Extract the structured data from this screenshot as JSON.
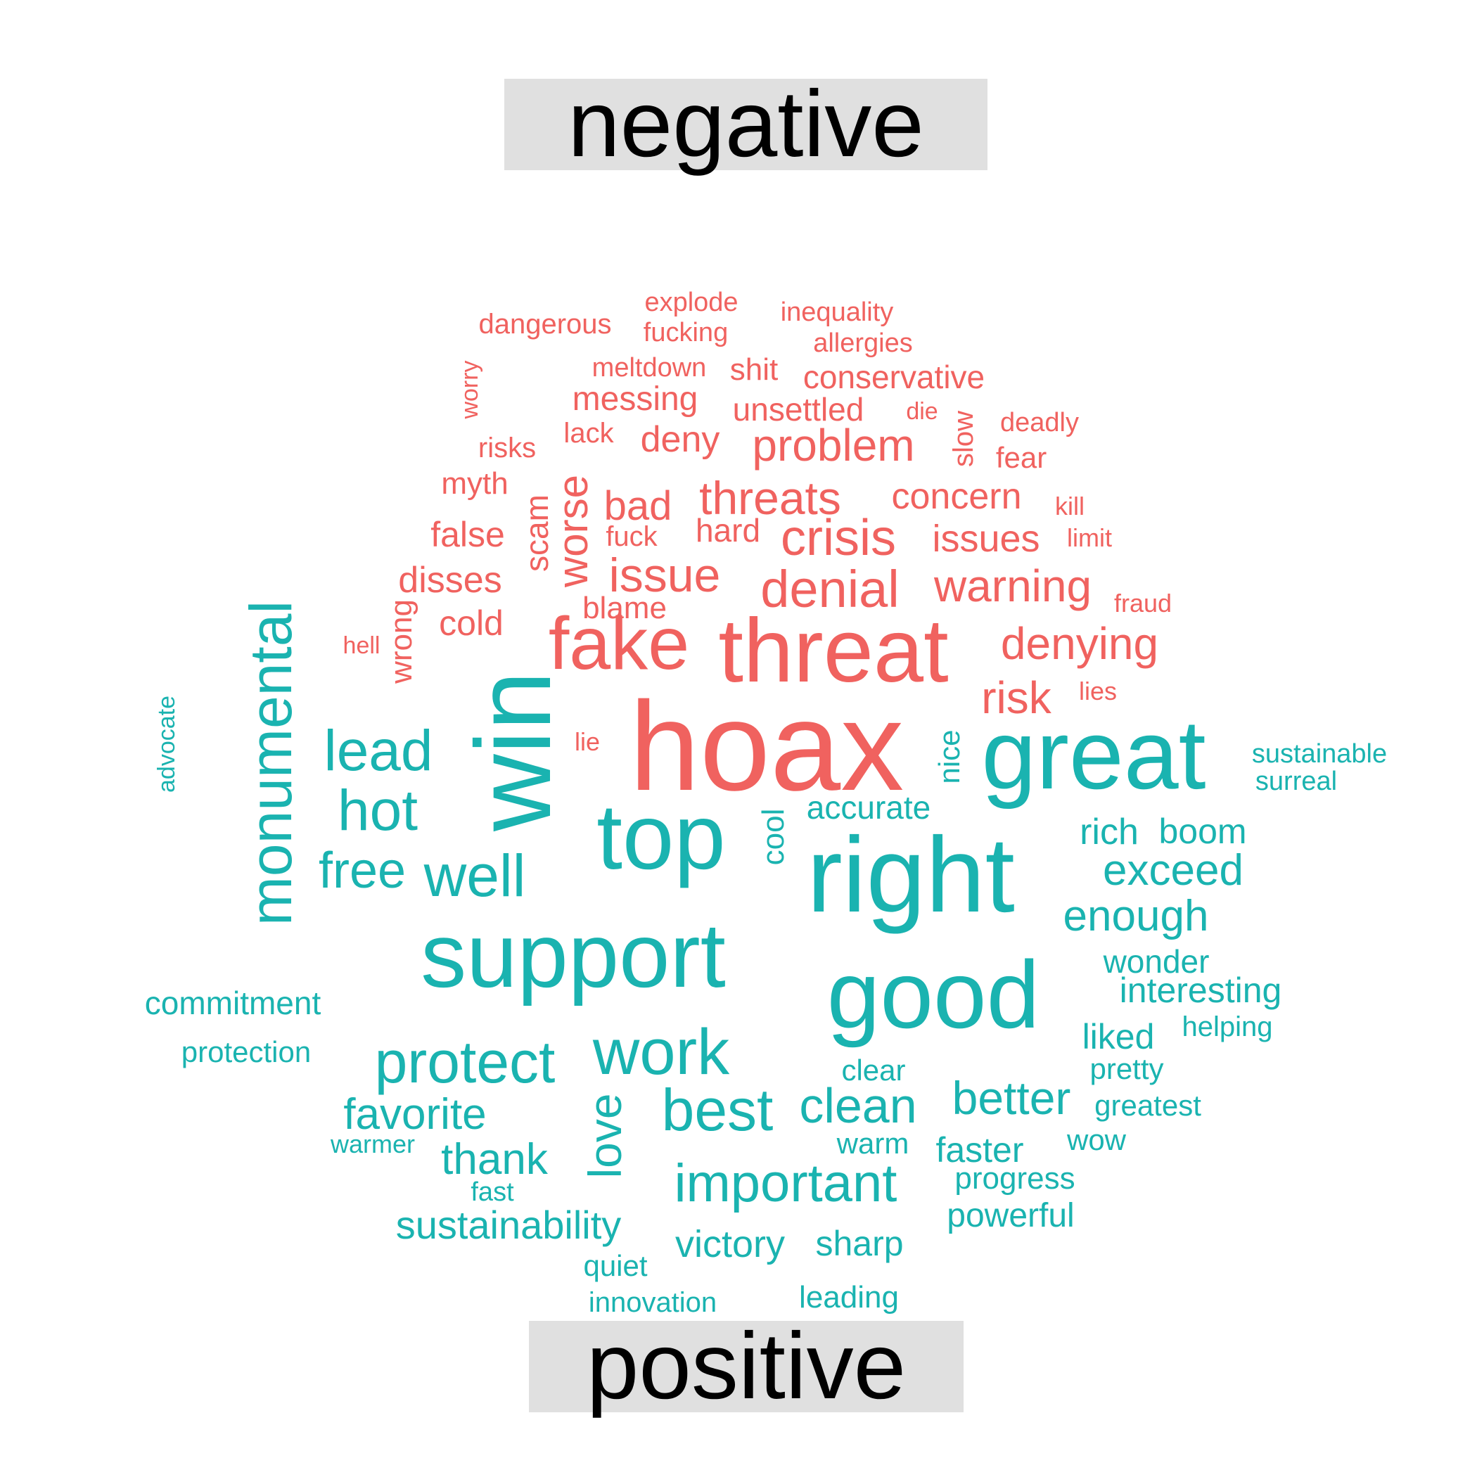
{
  "colors": {
    "negative": "#f0625f",
    "positive": "#1ab3b0",
    "label_background": "#e0e0e0"
  },
  "groups": {
    "negative": "negative",
    "positive": "positive"
  },
  "words": [
    {
      "text": "hoax",
      "sentiment": "negative"
    },
    {
      "text": "threat",
      "sentiment": "negative"
    },
    {
      "text": "fake",
      "sentiment": "negative"
    },
    {
      "text": "denial",
      "sentiment": "negative"
    },
    {
      "text": "crisis",
      "sentiment": "negative"
    },
    {
      "text": "issue",
      "sentiment": "negative"
    },
    {
      "text": "threats",
      "sentiment": "negative"
    },
    {
      "text": "problem",
      "sentiment": "negative"
    },
    {
      "text": "warning",
      "sentiment": "negative"
    },
    {
      "text": "denying",
      "sentiment": "negative"
    },
    {
      "text": "risk",
      "sentiment": "negative"
    },
    {
      "text": "worse",
      "sentiment": "negative"
    },
    {
      "text": "bad",
      "sentiment": "negative"
    },
    {
      "text": "issues",
      "sentiment": "negative"
    },
    {
      "text": "concern",
      "sentiment": "negative"
    },
    {
      "text": "deny",
      "sentiment": "negative"
    },
    {
      "text": "scam",
      "sentiment": "negative"
    },
    {
      "text": "disses",
      "sentiment": "negative"
    },
    {
      "text": "false",
      "sentiment": "negative"
    },
    {
      "text": "cold",
      "sentiment": "negative"
    },
    {
      "text": "blame",
      "sentiment": "negative"
    },
    {
      "text": "hard",
      "sentiment": "negative"
    },
    {
      "text": "messing",
      "sentiment": "negative"
    },
    {
      "text": "unsettled",
      "sentiment": "negative"
    },
    {
      "text": "conservative",
      "sentiment": "negative"
    },
    {
      "text": "myth",
      "sentiment": "negative"
    },
    {
      "text": "wrong",
      "sentiment": "negative"
    },
    {
      "text": "fuck",
      "sentiment": "negative"
    },
    {
      "text": "lack",
      "sentiment": "negative"
    },
    {
      "text": "risks",
      "sentiment": "negative"
    },
    {
      "text": "fear",
      "sentiment": "negative"
    },
    {
      "text": "deadly",
      "sentiment": "negative"
    },
    {
      "text": "slow",
      "sentiment": "negative"
    },
    {
      "text": "shit",
      "sentiment": "negative"
    },
    {
      "text": "meltdown",
      "sentiment": "negative"
    },
    {
      "text": "allergies",
      "sentiment": "negative"
    },
    {
      "text": "inequality",
      "sentiment": "negative"
    },
    {
      "text": "fucking",
      "sentiment": "negative"
    },
    {
      "text": "explode",
      "sentiment": "negative"
    },
    {
      "text": "dangerous",
      "sentiment": "negative"
    },
    {
      "text": "worry",
      "sentiment": "negative"
    },
    {
      "text": "die",
      "sentiment": "negative"
    },
    {
      "text": "kill",
      "sentiment": "negative"
    },
    {
      "text": "limit",
      "sentiment": "negative"
    },
    {
      "text": "fraud",
      "sentiment": "negative"
    },
    {
      "text": "lies",
      "sentiment": "negative"
    },
    {
      "text": "lie",
      "sentiment": "negative"
    },
    {
      "text": "hell",
      "sentiment": "negative"
    },
    {
      "text": "win",
      "sentiment": "positive"
    },
    {
      "text": "great",
      "sentiment": "positive"
    },
    {
      "text": "top",
      "sentiment": "positive"
    },
    {
      "text": "right",
      "sentiment": "positive"
    },
    {
      "text": "support",
      "sentiment": "positive"
    },
    {
      "text": "good",
      "sentiment": "positive"
    },
    {
      "text": "monumental",
      "sentiment": "positive"
    },
    {
      "text": "lead",
      "sentiment": "positive"
    },
    {
      "text": "hot",
      "sentiment": "positive"
    },
    {
      "text": "well",
      "sentiment": "positive"
    },
    {
      "text": "free",
      "sentiment": "positive"
    },
    {
      "text": "work",
      "sentiment": "positive"
    },
    {
      "text": "protect",
      "sentiment": "positive"
    },
    {
      "text": "best",
      "sentiment": "positive"
    },
    {
      "text": "love",
      "sentiment": "positive"
    },
    {
      "text": "clean",
      "sentiment": "positive"
    },
    {
      "text": "better",
      "sentiment": "positive"
    },
    {
      "text": "important",
      "sentiment": "positive"
    },
    {
      "text": "exceed",
      "sentiment": "positive"
    },
    {
      "text": "enough",
      "sentiment": "positive"
    },
    {
      "text": "favorite",
      "sentiment": "positive"
    },
    {
      "text": "thank",
      "sentiment": "positive"
    },
    {
      "text": "rich",
      "sentiment": "positive"
    },
    {
      "text": "boom",
      "sentiment": "positive"
    },
    {
      "text": "cool",
      "sentiment": "positive"
    },
    {
      "text": "accurate",
      "sentiment": "positive"
    },
    {
      "text": "nice",
      "sentiment": "positive"
    },
    {
      "text": "sustainability",
      "sentiment": "positive"
    },
    {
      "text": "victory",
      "sentiment": "positive"
    },
    {
      "text": "sharp",
      "sentiment": "positive"
    },
    {
      "text": "interesting",
      "sentiment": "positive"
    },
    {
      "text": "wonder",
      "sentiment": "positive"
    },
    {
      "text": "liked",
      "sentiment": "positive"
    },
    {
      "text": "helping",
      "sentiment": "positive"
    },
    {
      "text": "pretty",
      "sentiment": "positive"
    },
    {
      "text": "greatest",
      "sentiment": "positive"
    },
    {
      "text": "wow",
      "sentiment": "positive"
    },
    {
      "text": "faster",
      "sentiment": "positive"
    },
    {
      "text": "progress",
      "sentiment": "positive"
    },
    {
      "text": "powerful",
      "sentiment": "positive"
    },
    {
      "text": "warm",
      "sentiment": "positive"
    },
    {
      "text": "clear",
      "sentiment": "positive"
    },
    {
      "text": "commitment",
      "sentiment": "positive"
    },
    {
      "text": "protection",
      "sentiment": "positive"
    },
    {
      "text": "warmer",
      "sentiment": "positive"
    },
    {
      "text": "fast",
      "sentiment": "positive"
    },
    {
      "text": "quiet",
      "sentiment": "positive"
    },
    {
      "text": "innovation",
      "sentiment": "positive"
    },
    {
      "text": "leading",
      "sentiment": "positive"
    },
    {
      "text": "sustainable",
      "sentiment": "positive"
    },
    {
      "text": "surreal",
      "sentiment": "positive"
    },
    {
      "text": "advocate",
      "sentiment": "positive"
    }
  ]
}
